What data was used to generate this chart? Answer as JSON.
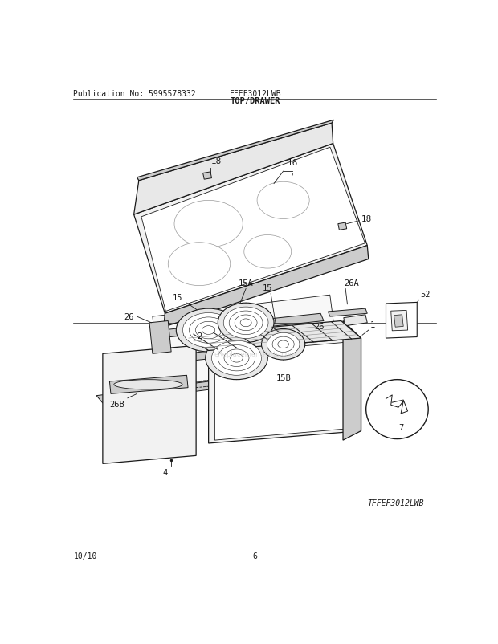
{
  "title": "TOP/DRAWER",
  "model": "FFEF3012LWB",
  "publication": "Publication No: 5995578332",
  "diagram_label": "TFFEF3012LWB",
  "footer_left": "10/10",
  "footer_center": "6",
  "bg_color": "#ffffff",
  "text_color": "#1a1a1a",
  "gray_fill": "#e8e8e8",
  "light_gray": "#f2f2f2",
  "mid_gray": "#cccccc",
  "dark_gray": "#999999"
}
